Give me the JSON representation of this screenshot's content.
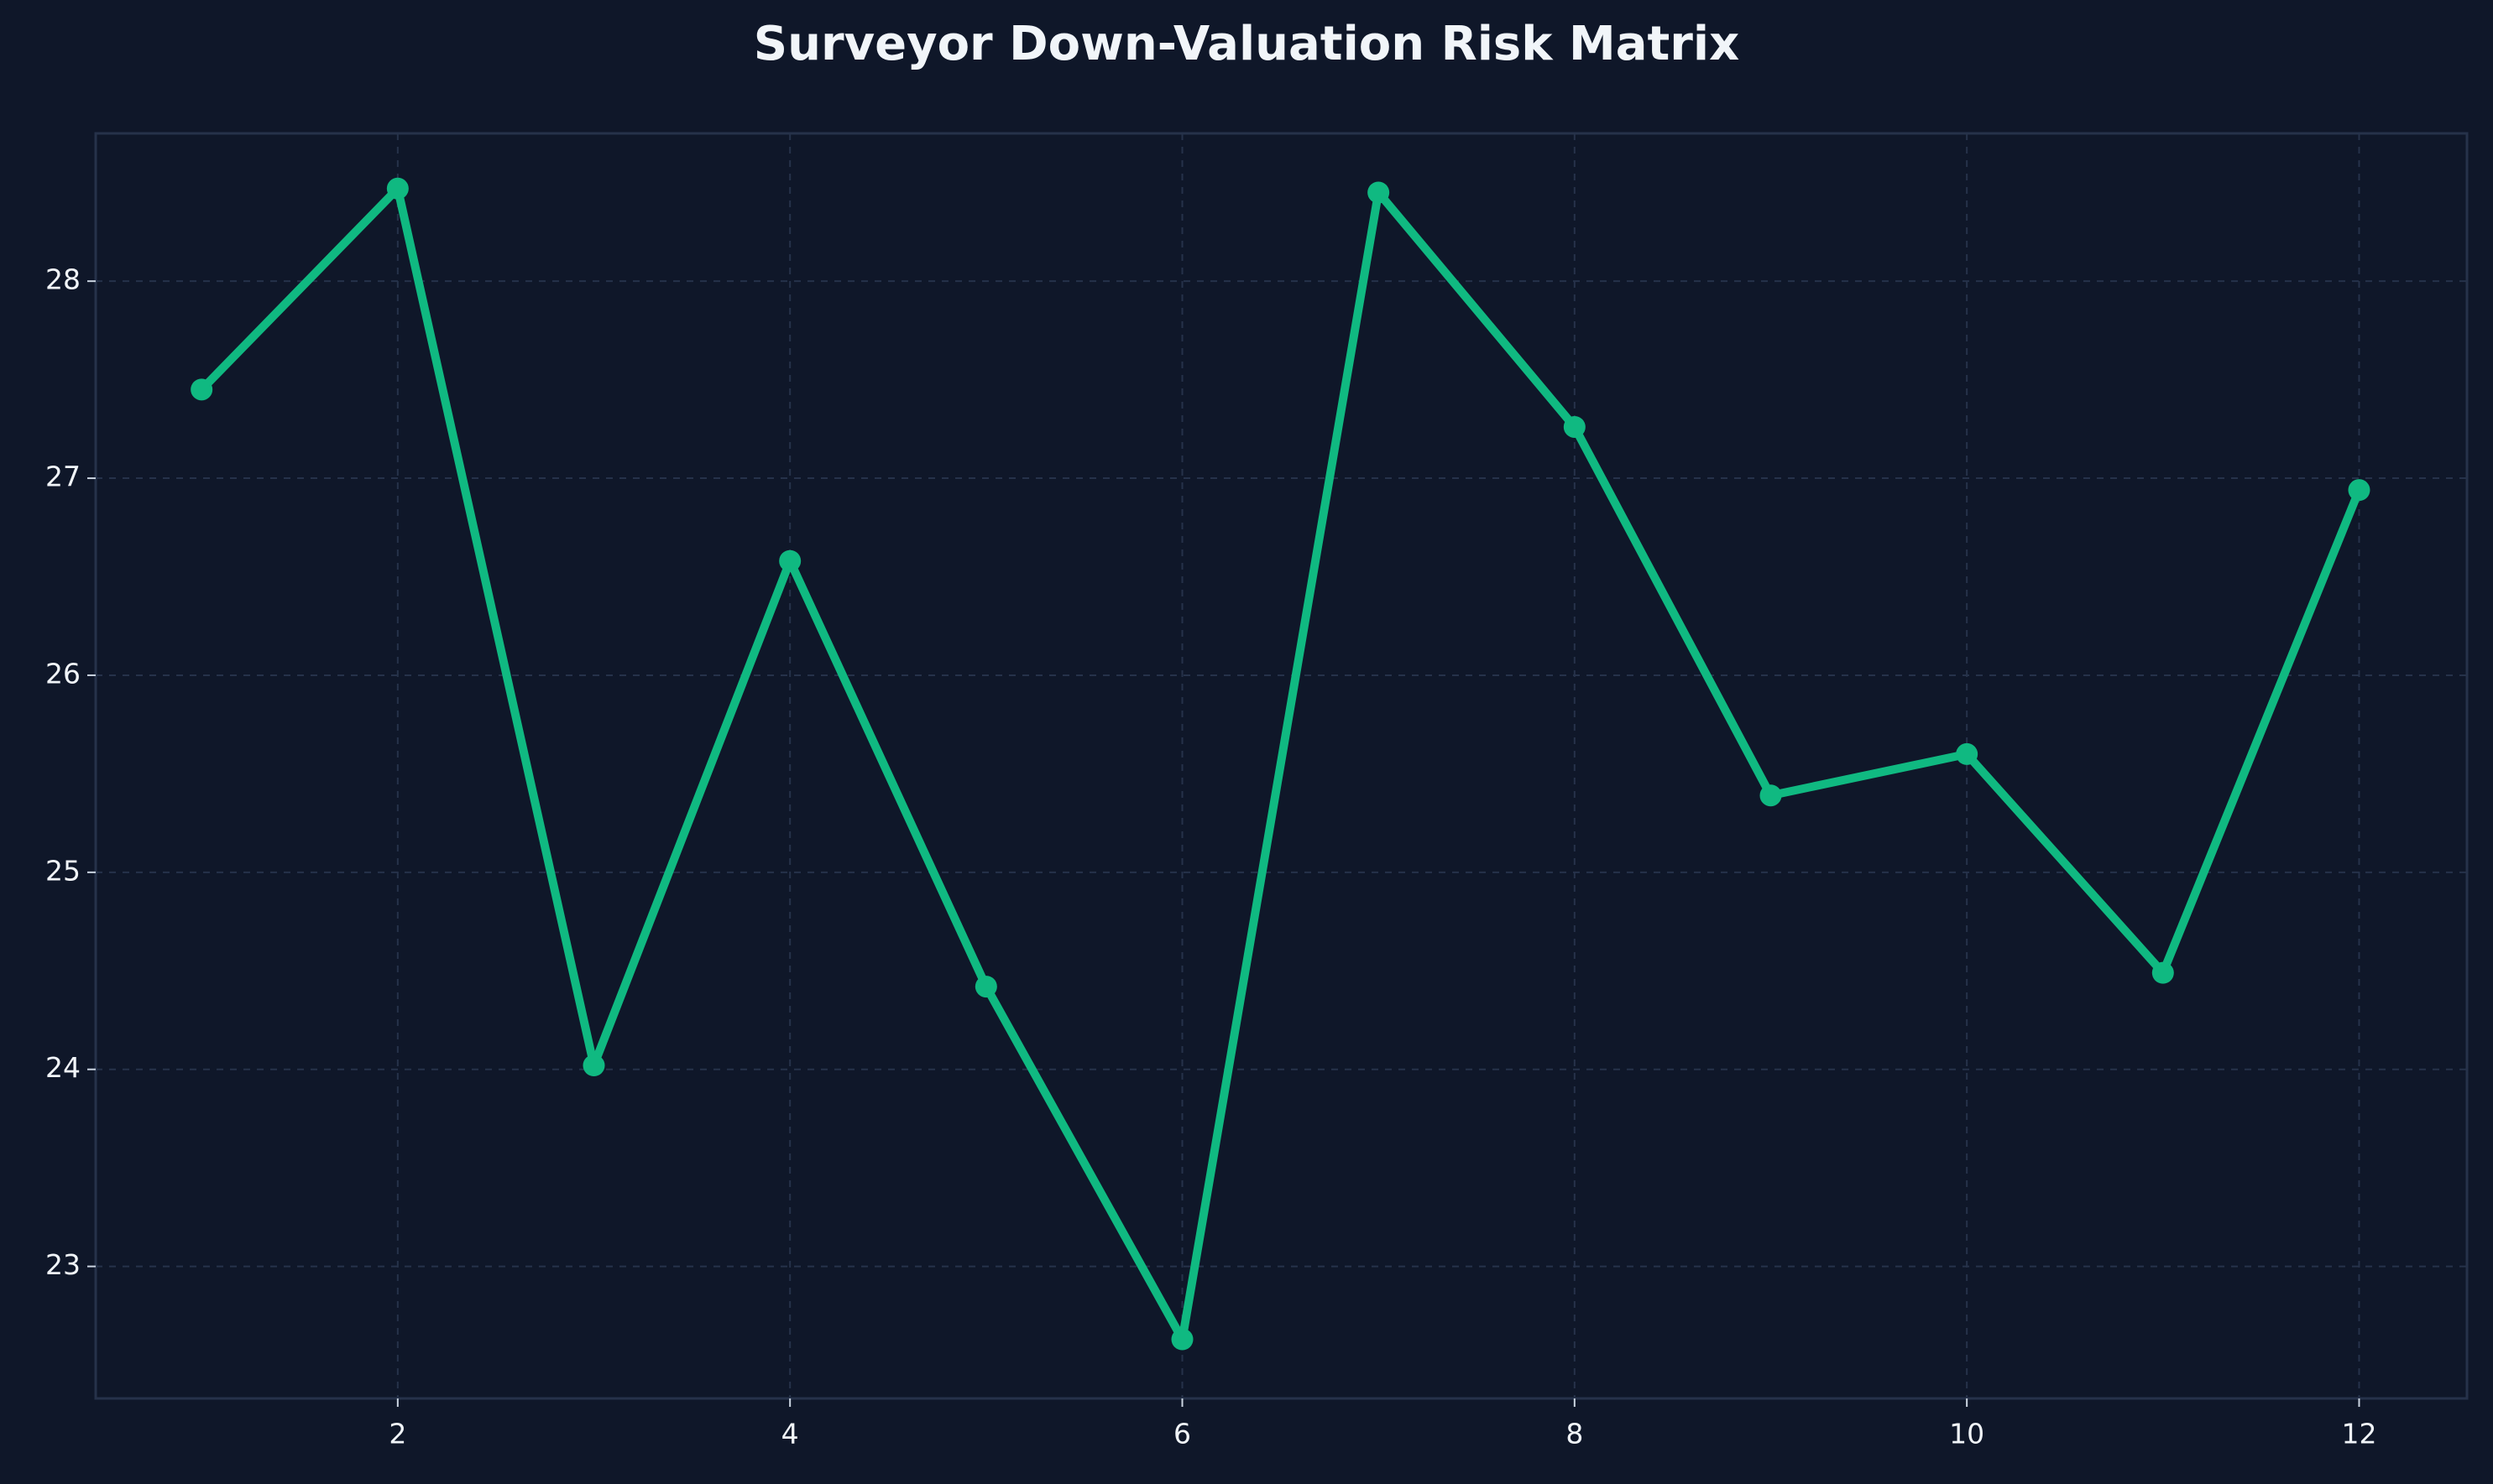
{
  "chart_data": {
    "type": "line",
    "title": "Surveyor Down-Valuation Risk Matrix",
    "x": [
      1,
      2,
      3,
      4,
      5,
      6,
      7,
      8,
      9,
      10,
      11,
      12
    ],
    "values": [
      27.45,
      28.47,
      24.02,
      26.58,
      24.42,
      22.63,
      28.45,
      27.26,
      25.39,
      25.6,
      24.49,
      26.94
    ],
    "color": "#10b981",
    "xlim": [
      0.46,
      12.55
    ],
    "xticks": [
      2,
      4,
      6,
      8,
      10,
      12
    ],
    "ylim": [
      22.33,
      28.75
    ],
    "yticks": [
      23,
      24,
      25,
      26,
      27,
      28
    ],
    "grid": true
  }
}
